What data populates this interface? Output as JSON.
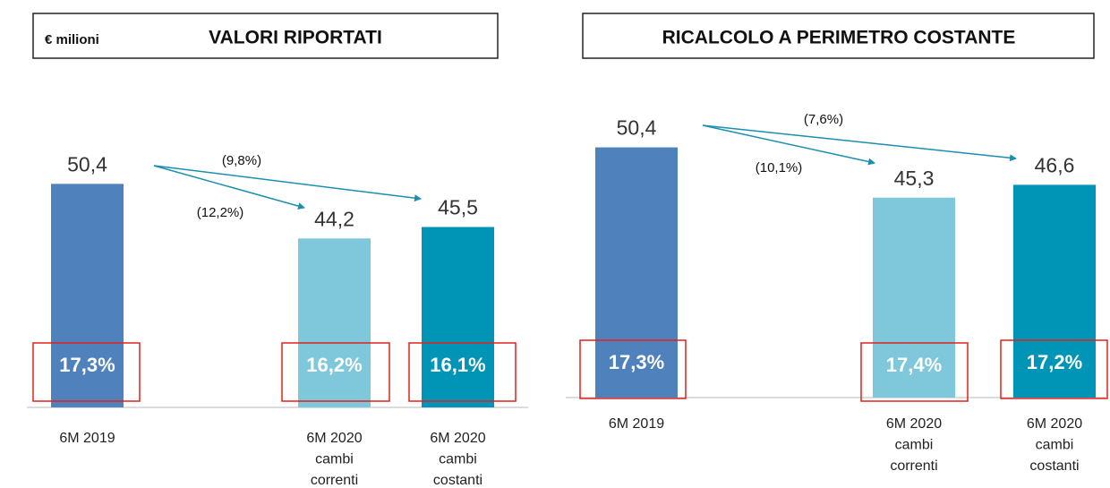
{
  "chart_data": [
    {
      "type": "bar",
      "unit": "€ milioni",
      "title": "VALORI RIPORTATI",
      "categories": [
        [
          "6M 2019"
        ],
        [
          "6M 2020",
          "cambi",
          "correnti"
        ],
        [
          "6M 2020",
          "cambi",
          "costanti"
        ]
      ],
      "values": [
        50.4,
        44.2,
        45.5
      ],
      "value_labels": [
        "50,4",
        "44,2",
        "45,5"
      ],
      "margin_labels": [
        "17,3%",
        "16,2%",
        "16,1%"
      ],
      "colors": [
        "#4f81bd",
        "#7fc8db",
        "#0095b6"
      ],
      "annotations": [
        "(9,8%)",
        "(12,2%)"
      ],
      "ylim": [
        25,
        60
      ]
    },
    {
      "type": "bar",
      "title": "RICALCOLO A PERIMETRO COSTANTE",
      "categories": [
        [
          "6M 2019"
        ],
        [
          "6M 2020",
          "cambi",
          "correnti"
        ],
        [
          "6M 2020",
          "cambi",
          "costanti"
        ]
      ],
      "values": [
        50.4,
        45.3,
        46.6
      ],
      "value_labels": [
        "50,4",
        "45,3",
        "46,6"
      ],
      "margin_labels": [
        "17,3%",
        "17,4%",
        "17,2%"
      ],
      "colors": [
        "#4f81bd",
        "#7fc8db",
        "#0095b6"
      ],
      "annotations": [
        "(7,6%)",
        "(10,1%)"
      ],
      "ylim": [
        25,
        60
      ]
    }
  ]
}
